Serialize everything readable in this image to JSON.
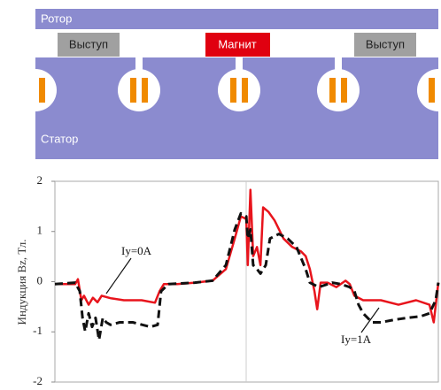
{
  "diagram": {
    "rotor": "Ротор",
    "protrusion_left": "Выступ",
    "magnet": "Магнит",
    "protrusion_right": "Выступ",
    "stator": "Статор"
  },
  "chart_data": {
    "type": "line",
    "y_label": "Индукция Bz, Тл.",
    "xlim": [
      0,
      100
    ],
    "ylim": [
      -2,
      2
    ],
    "yticks": [
      -2,
      -1,
      0,
      1,
      2
    ],
    "annotations": [
      "Iy=0A",
      "Iy=1A"
    ],
    "series": [
      {
        "name": "Iy=0A",
        "color": "#e8141c",
        "dash": false,
        "x": [
          0,
          5.3,
          6.0,
          6.9,
          7.6,
          8.8,
          9.9,
          11.1,
          12.2,
          14.5,
          18.0,
          22.6,
          26.1,
          27.3,
          28.4,
          31.9,
          36.5,
          41.1,
          44.6,
          46.9,
          48.5,
          49.9,
          50.3,
          51.0,
          51.7,
          52.7,
          53.6,
          54.3,
          55.7,
          57.3,
          59.6,
          61.9,
          64.2,
          65.4,
          66.5,
          67.7,
          68.4,
          69.3,
          71.1,
          73.4,
          75.8,
          76.9,
          78.1,
          80.4,
          85.0,
          89.6,
          94.2,
          97.7,
          98.8,
          100
        ],
        "values": [
          -0.05,
          -0.05,
          0.05,
          -0.37,
          -0.28,
          -0.46,
          -0.32,
          -0.41,
          -0.28,
          -0.33,
          -0.37,
          -0.37,
          -0.42,
          -0.19,
          -0.05,
          -0.05,
          -0.02,
          0.02,
          0.25,
          0.86,
          1.3,
          1.25,
          0.33,
          1.83,
          0.51,
          0.69,
          0.33,
          1.48,
          1.39,
          1.22,
          0.86,
          0.69,
          0.6,
          0.51,
          0.25,
          -0.19,
          -0.55,
          -0.02,
          -0.02,
          -0.11,
          0.02,
          -0.05,
          -0.28,
          -0.37,
          -0.37,
          -0.46,
          -0.37,
          -0.46,
          -0.81,
          -0.02
        ]
      },
      {
        "name": "Iy=1A",
        "color": "#111111",
        "dash": true,
        "x": [
          0,
          5.3,
          6.5,
          7.2,
          7.9,
          8.8,
          9.7,
          10.6,
          11.5,
          12.5,
          13.4,
          14.5,
          16.9,
          20.3,
          24.9,
          26.8,
          27.7,
          29.6,
          36.5,
          41.1,
          44.6,
          46.9,
          48.5,
          49.9,
          50.3,
          51.0,
          51.7,
          52.7,
          53.6,
          55.0,
          56.1,
          58.4,
          60.7,
          63.0,
          65.4,
          66.5,
          68.8,
          72.3,
          74.6,
          76.9,
          78.1,
          79.2,
          80.4,
          82.7,
          85.0,
          88.5,
          91.9,
          95.4,
          97.7,
          99.3,
          100
        ],
        "values": [
          -0.05,
          -0.02,
          -0.19,
          -0.72,
          -0.99,
          -0.63,
          -0.9,
          -0.72,
          -1.16,
          -0.72,
          -0.81,
          -0.86,
          -0.81,
          -0.81,
          -0.9,
          -0.86,
          -0.19,
          -0.05,
          -0.02,
          0.02,
          0.33,
          1.04,
          1.36,
          1.3,
          0.86,
          1.04,
          0.33,
          0.25,
          0.16,
          0.33,
          0.86,
          0.95,
          0.86,
          0.69,
          0.25,
          -0.02,
          -0.11,
          -0.02,
          -0.05,
          -0.11,
          -0.19,
          -0.46,
          -0.63,
          -0.81,
          -0.81,
          -0.76,
          -0.72,
          -0.69,
          -0.63,
          -0.37,
          -0.02
        ]
      }
    ]
  }
}
